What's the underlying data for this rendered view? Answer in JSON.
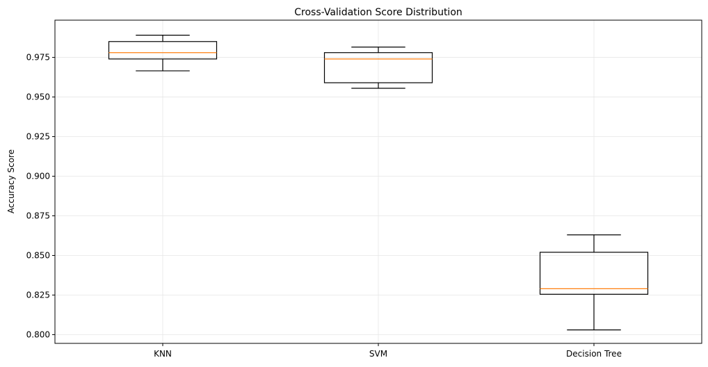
{
  "chart_data": {
    "type": "box",
    "title": "Cross-Validation Score Distribution",
    "xlabel": "",
    "ylabel": "Accuracy Score",
    "ylim": [
      0.7945,
      0.9985
    ],
    "yticks": [
      "0.800",
      "0.825",
      "0.850",
      "0.875",
      "0.900",
      "0.925",
      "0.950",
      "0.975"
    ],
    "ytick_values": [
      0.8,
      0.825,
      0.85,
      0.875,
      0.9,
      0.925,
      0.95,
      0.975
    ],
    "categories": [
      "KNN",
      "SVM",
      "Decision Tree"
    ],
    "boxes": [
      {
        "category": "KNN",
        "whisker_low": 0.9665,
        "q1": 0.974,
        "median": 0.978,
        "q3": 0.985,
        "whisker_high": 0.989
      },
      {
        "category": "SVM",
        "whisker_low": 0.9555,
        "q1": 0.959,
        "median": 0.974,
        "q3": 0.978,
        "whisker_high": 0.9815
      },
      {
        "category": "Decision Tree",
        "whisker_low": 0.803,
        "q1": 0.8255,
        "median": 0.829,
        "q3": 0.852,
        "whisker_high": 0.863
      }
    ],
    "grid": true,
    "colors": {
      "box": "#000000",
      "median": "#ff7f0e",
      "grid": "#e6e6e6"
    }
  }
}
